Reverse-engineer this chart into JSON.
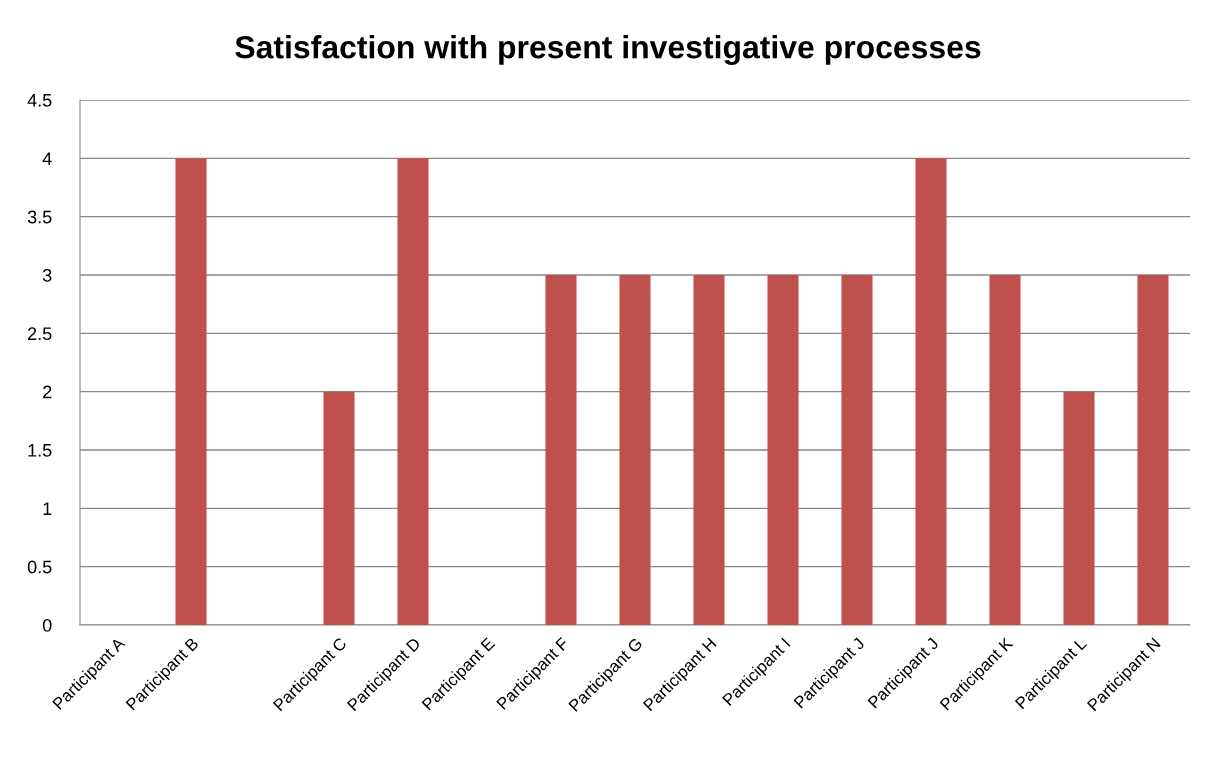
{
  "chart_data": {
    "type": "bar",
    "title": "Satisfaction with present investigative processes",
    "categories": [
      "Participant A",
      "Participant B",
      null,
      "Participant C",
      "Participant D",
      "Participant E",
      "Participant F",
      "Participant G",
      "Participant H",
      "Participant I",
      "Participant J",
      "Participant J",
      "Participant K",
      "Participant L",
      "Participant N"
    ],
    "values": [
      0,
      4,
      null,
      2,
      4,
      0,
      3,
      3,
      3,
      3,
      3,
      4,
      3,
      2,
      3
    ],
    "color": "#c0504d",
    "ylim": [
      0,
      4.5
    ],
    "yticks": [
      0,
      0.5,
      1,
      1.5,
      2,
      2.5,
      3,
      3.5,
      4,
      4.5
    ],
    "grid": "y"
  }
}
